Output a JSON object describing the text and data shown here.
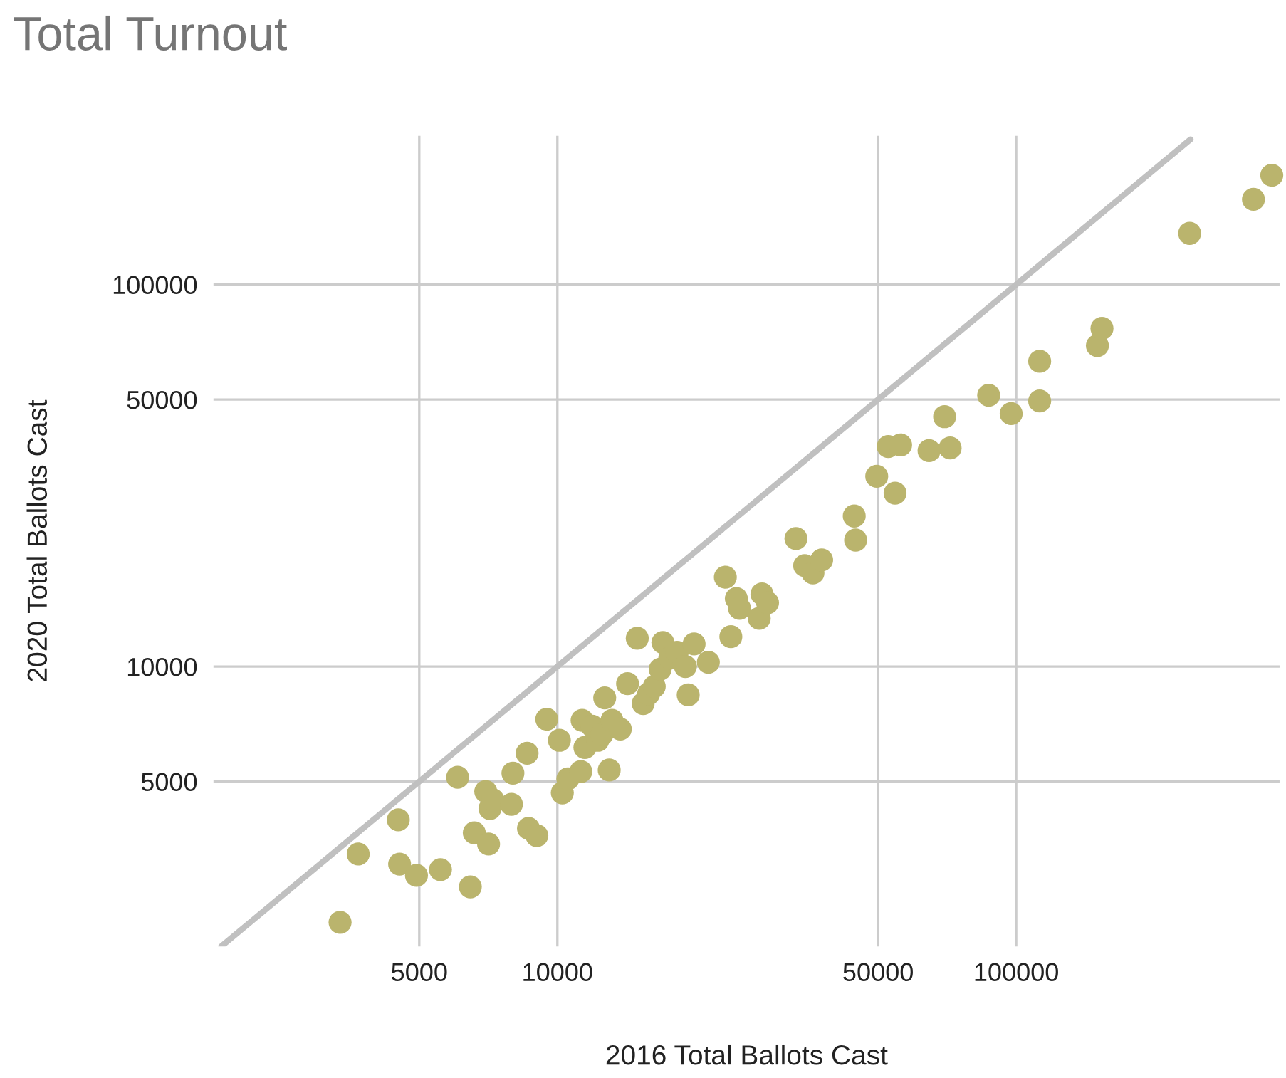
{
  "chart_data": {
    "type": "scatter",
    "title": "Total Turnout",
    "xlabel": "2016 Total Ballots Cast",
    "ylabel": "2020 Total Ballots Cast",
    "log": "xy",
    "grid": true,
    "marker": "circle",
    "xlim": [
      1780,
      375000
    ],
    "ylim": [
      1850,
      245000
    ],
    "xticks": [
      5000,
      10000,
      50000,
      100000
    ],
    "yticks": [
      5000,
      10000,
      50000,
      100000
    ],
    "series": [
      {
        "type": "line",
        "marker": "none",
        "color": "#c0c0c0",
        "x": [
          1850,
          240000
        ],
        "values": [
          1850,
          240000
        ]
      },
      {
        "color": "#bab46d",
        "x": [
          3360,
          3680,
          4500,
          4530,
          4930,
          5560,
          6060,
          6460,
          6590,
          6980,
          7080,
          7130,
          7230,
          7940,
          8000,
          8590,
          8650,
          9020,
          9480,
          10100,
          10250,
          10540,
          11250,
          11320,
          11480,
          11910,
          12250,
          12500,
          12680,
          12970,
          13150,
          13710,
          14220,
          14930,
          15380,
          15810,
          16260,
          16750,
          16980,
          17580,
          18240,
          19010,
          19280,
          19860,
          21330,
          23230,
          23880,
          24550,
          24950,
          27540,
          27920,
          28710,
          33110,
          34590,
          36060,
          37670,
          44360,
          44670,
          49660,
          52600,
          54450,
          55980,
          64570,
          69820,
          71780,
          87100,
          97500,
          112500,
          112500,
          150300,
          153800,
          238800,
          328900,
          360600
        ],
        "values": [
          2140,
          3230,
          3970,
          3040,
          2840,
          2940,
          5130,
          2650,
          3670,
          4710,
          3430,
          4250,
          4480,
          4360,
          5260,
          5930,
          3770,
          3610,
          7280,
          6410,
          4670,
          5080,
          5310,
          7230,
          6140,
          6980,
          6410,
          6640,
          8280,
          5360,
          7230,
          6860,
          9020,
          11860,
          8000,
          8490,
          8870,
          9840,
          11560,
          10520,
          10890,
          10000,
          8430,
          11460,
          10260,
          17140,
          11970,
          15070,
          14200,
          13370,
          15490,
          14690,
          21630,
          18370,
          17580,
          19010,
          24770,
          21430,
          31480,
          37670,
          28440,
          38020,
          36730,
          45080,
          37330,
          51290,
          45920,
          49550,
          62950,
          69180,
          76740,
          136100,
          167100,
          193200
        ]
      }
    ]
  }
}
